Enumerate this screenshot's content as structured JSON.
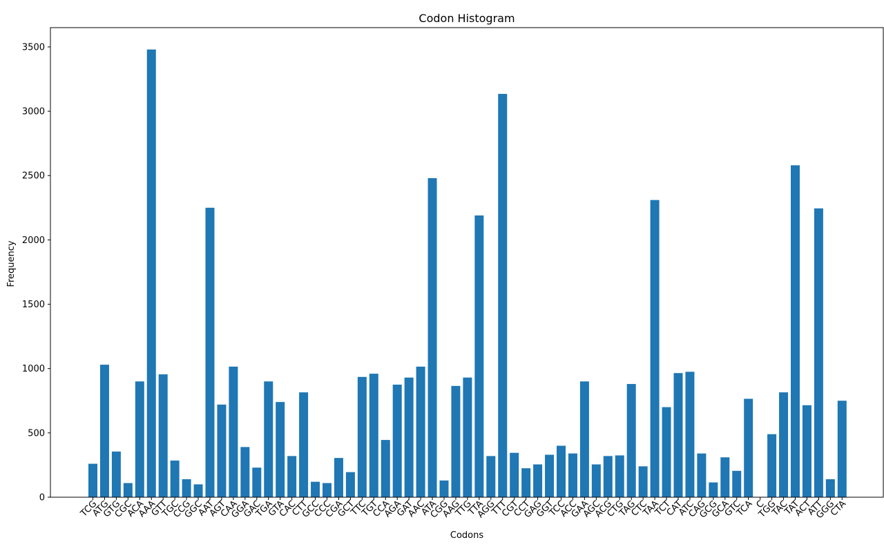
{
  "chart_data": {
    "type": "bar",
    "title": "Codon Histogram",
    "xlabel": "Codons",
    "ylabel": "Frequency",
    "ylim": [
      0,
      3650
    ],
    "yticks": [
      0,
      500,
      1000,
      1500,
      2000,
      2500,
      3000,
      3500
    ],
    "grid": false,
    "bar_color": "#1f77b4",
    "categories": [
      "TCG",
      "ATG",
      "GTG",
      "CGC",
      "ACA",
      "AAA",
      "GTT",
      "TGC",
      "CCG",
      "GGC",
      "AAT",
      "AGT",
      "CAA",
      "GGA",
      "GAC",
      "TGA",
      "GTA",
      "CAC",
      "CTT",
      "GCC",
      "CCC",
      "CGA",
      "GCT",
      "TTC",
      "TGT",
      "CCA",
      "AGA",
      "GAT",
      "AAC",
      "ATA",
      "CGG",
      "AAG",
      "TTG",
      "TTA",
      "AGG",
      "TTT",
      "CGT",
      "CCT",
      "GAG",
      "GGT",
      "TCC",
      "ACC",
      "GAA",
      "AGC",
      "ACG",
      "CTG",
      "TAG",
      "CTC",
      "TAA",
      "TCT",
      "CAT",
      "ATC",
      "CAG",
      "GCG",
      "GCA",
      "GTC",
      "TCA",
      "C",
      "TGG",
      "TAC",
      "TAT",
      "ACT",
      "ATT",
      "GGG",
      "CTA"
    ],
    "values": [
      260,
      1030,
      355,
      110,
      900,
      3480,
      955,
      285,
      140,
      100,
      2250,
      720,
      1015,
      390,
      230,
      900,
      740,
      320,
      815,
      120,
      110,
      305,
      195,
      935,
      960,
      445,
      875,
      930,
      1015,
      2480,
      130,
      865,
      930,
      2190,
      320,
      3135,
      345,
      225,
      255,
      330,
      400,
      340,
      900,
      255,
      320,
      325,
      880,
      240,
      2310,
      700,
      965,
      975,
      340,
      115,
      310,
      205,
      765,
      2,
      490,
      815,
      2580,
      715,
      2245,
      140,
      750
    ]
  }
}
